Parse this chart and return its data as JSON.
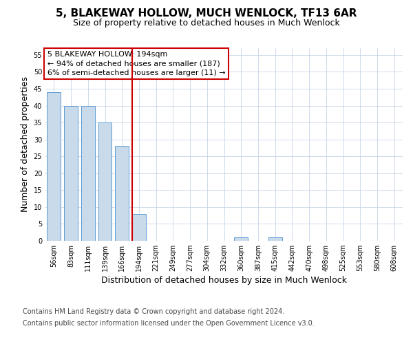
{
  "title": "5, BLAKEWAY HOLLOW, MUCH WENLOCK, TF13 6AR",
  "subtitle": "Size of property relative to detached houses in Much Wenlock",
  "xlabel": "Distribution of detached houses by size in Much Wenlock",
  "ylabel": "Number of detached properties",
  "categories": [
    "56sqm",
    "83sqm",
    "111sqm",
    "139sqm",
    "166sqm",
    "194sqm",
    "221sqm",
    "249sqm",
    "277sqm",
    "304sqm",
    "332sqm",
    "360sqm",
    "387sqm",
    "415sqm",
    "442sqm",
    "470sqm",
    "498sqm",
    "525sqm",
    "553sqm",
    "580sqm",
    "608sqm"
  ],
  "values": [
    44,
    40,
    40,
    35,
    28,
    8,
    0,
    0,
    0,
    0,
    0,
    1,
    0,
    1,
    0,
    0,
    0,
    0,
    0,
    0,
    0
  ],
  "bar_color": "#c9daea",
  "bar_edge_color": "#5b9bd5",
  "highlight_index": 5,
  "highlight_line_color": "#cc0000",
  "annotation_line1": "5 BLAKEWAY HOLLOW: 194sqm",
  "annotation_line2": "← 94% of detached houses are smaller (187)",
  "annotation_line3": "6% of semi-detached houses are larger (11) →",
  "annotation_box_color": "#ffffff",
  "annotation_box_edge_color": "#cc0000",
  "ylim": [
    0,
    57
  ],
  "yticks": [
    0,
    5,
    10,
    15,
    20,
    25,
    30,
    35,
    40,
    45,
    50,
    55
  ],
  "footer_line1": "Contains HM Land Registry data © Crown copyright and database right 2024.",
  "footer_line2": "Contains public sector information licensed under the Open Government Licence v3.0.",
  "background_color": "#ffffff",
  "grid_color": "#c8d4e8",
  "title_fontsize": 11,
  "subtitle_fontsize": 9,
  "axis_label_fontsize": 9,
  "tick_fontsize": 7,
  "annotation_fontsize": 8,
  "footer_fontsize": 7
}
